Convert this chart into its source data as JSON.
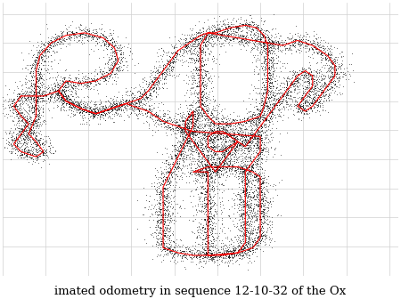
{
  "title": "imated odometry in sequence 12-10-32 of the Ox",
  "title_fontsize": 9.5,
  "background_color": "#ffffff",
  "grid_color": "#d0d0d0",
  "fig_width": 4.5,
  "fig_height": 3.36,
  "dpi": 100,
  "red_line_color": "#ff0000",
  "black_dot_color": "#111111",
  "red_linewidth": 0.85,
  "noise_scale": 0.008,
  "scatter_noise": 0.022,
  "n_scatter": 8000
}
